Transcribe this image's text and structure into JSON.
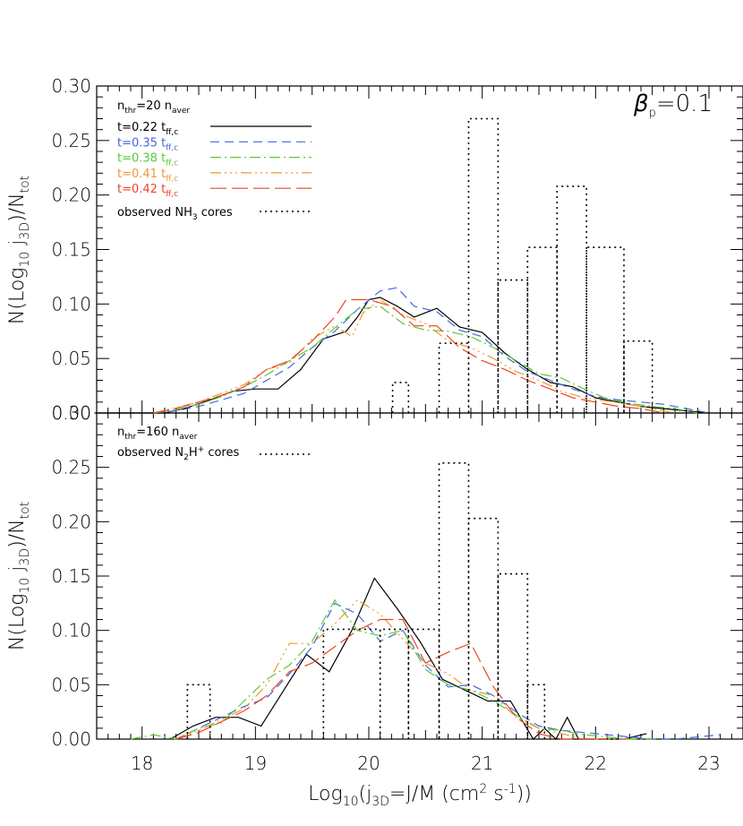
{
  "chart_data": [
    {
      "type": "line",
      "panel": "top",
      "xlim": [
        17.6,
        23.3
      ],
      "ylim": [
        0.0,
        0.3
      ],
      "yticks": [
        "0.00",
        "0.05",
        "0.10",
        "0.15",
        "0.20",
        "0.25",
        "0.30"
      ],
      "ylabel": "N(Log10 j3D)/Ntot",
      "annotation": "βp=0.1",
      "header": "nthr=20 naver",
      "series": [
        {
          "name": "t=0.22 tff,c",
          "color": "#000000",
          "dash": "",
          "x": [
            17.58,
            17.72,
            17.95,
            18.2,
            18.4,
            18.6,
            18.8,
            19.0,
            19.2,
            19.4,
            19.6,
            19.8,
            19.9,
            20.0,
            20.1,
            20.25,
            20.4,
            20.6,
            20.8,
            21.0,
            21.2,
            21.4,
            21.6,
            21.8,
            22.0,
            22.2,
            22.4,
            22.6,
            22.8,
            23.0
          ],
          "y": [
            0.0,
            0.0,
            0.0,
            0.0,
            0.005,
            0.012,
            0.02,
            0.022,
            0.022,
            0.04,
            0.068,
            0.075,
            0.088,
            0.104,
            0.106,
            0.098,
            0.088,
            0.096,
            0.079,
            0.074,
            0.055,
            0.04,
            0.028,
            0.024,
            0.014,
            0.01,
            0.006,
            0.004,
            0.002,
            0.0
          ]
        },
        {
          "name": "t=0.35 tff,c",
          "color": "#4466dd",
          "dash": "10,6",
          "x": [
            18.1,
            18.3,
            18.5,
            18.7,
            18.9,
            19.1,
            19.3,
            19.5,
            19.7,
            19.9,
            20.1,
            20.25,
            20.4,
            20.6,
            20.8,
            21.0,
            21.2,
            21.4,
            21.6,
            21.8,
            22.0,
            22.2,
            22.4,
            22.6,
            22.8,
            23.0
          ],
          "y": [
            0.0,
            0.002,
            0.006,
            0.012,
            0.018,
            0.03,
            0.042,
            0.06,
            0.075,
            0.095,
            0.112,
            0.115,
            0.098,
            0.093,
            0.076,
            0.07,
            0.052,
            0.038,
            0.03,
            0.022,
            0.015,
            0.012,
            0.01,
            0.008,
            0.004,
            0.0
          ]
        },
        {
          "name": "t=0.38 tff,c",
          "color": "#55cc33",
          "dash": "12,4,2,4",
          "x": [
            18.1,
            18.3,
            18.5,
            18.7,
            18.9,
            19.1,
            19.3,
            19.5,
            19.7,
            19.9,
            20.1,
            20.3,
            20.5,
            20.7,
            20.9,
            21.1,
            21.3,
            21.5,
            21.7,
            21.9,
            22.1,
            22.3,
            22.5,
            22.7,
            22.9
          ],
          "y": [
            0.0,
            0.003,
            0.008,
            0.015,
            0.024,
            0.035,
            0.048,
            0.06,
            0.078,
            0.095,
            0.098,
            0.082,
            0.076,
            0.075,
            0.07,
            0.06,
            0.048,
            0.036,
            0.032,
            0.022,
            0.013,
            0.009,
            0.006,
            0.004,
            0.0
          ]
        },
        {
          "name": "t=0.41 tff,c",
          "color": "#ee9933",
          "dash": "12,4,2,4,2,4,2,4",
          "x": [
            18.1,
            18.3,
            18.5,
            18.7,
            18.9,
            19.1,
            19.3,
            19.5,
            19.7,
            19.85,
            19.95,
            20.1,
            20.3,
            20.5,
            20.7,
            20.9,
            21.1,
            21.3,
            21.5,
            21.7,
            21.9,
            22.1,
            22.3,
            22.5,
            22.7
          ],
          "y": [
            0.0,
            0.005,
            0.01,
            0.018,
            0.026,
            0.04,
            0.046,
            0.068,
            0.08,
            0.07,
            0.092,
            0.104,
            0.09,
            0.082,
            0.066,
            0.06,
            0.05,
            0.038,
            0.03,
            0.02,
            0.014,
            0.011,
            0.008,
            0.004,
            0.0
          ]
        },
        {
          "name": "t=0.42 tff,c",
          "color": "#ee4422",
          "dash": "18,6",
          "x": [
            18.1,
            18.3,
            18.5,
            18.7,
            18.9,
            19.1,
            19.3,
            19.5,
            19.7,
            19.8,
            20.0,
            20.2,
            20.4,
            20.6,
            20.8,
            21.0,
            21.2,
            21.4,
            21.6,
            21.8,
            22.0,
            22.2,
            22.4,
            22.6
          ],
          "y": [
            0.0,
            0.004,
            0.01,
            0.016,
            0.024,
            0.04,
            0.048,
            0.066,
            0.088,
            0.104,
            0.104,
            0.098,
            0.08,
            0.08,
            0.06,
            0.048,
            0.04,
            0.03,
            0.022,
            0.014,
            0.01,
            0.006,
            0.004,
            0.0
          ]
        },
        {
          "name": "observed NH3 cores",
          "color": "#000000",
          "dash": "2,4",
          "step": true,
          "bins": [
            {
              "x0": 20.21,
              "x1": 20.35,
              "y": 0.028
            },
            {
              "x0": 20.62,
              "x1": 20.88,
              "y": 0.064
            },
            {
              "x0": 20.88,
              "x1": 21.14,
              "y": 0.27
            },
            {
              "x0": 21.14,
              "x1": 21.4,
              "y": 0.122
            },
            {
              "x0": 21.4,
              "x1": 21.66,
              "y": 0.152
            },
            {
              "x0": 21.66,
              "x1": 21.92,
              "y": 0.208
            },
            {
              "x0": 21.92,
              "x1": 22.25,
              "y": 0.152
            },
            {
              "x0": 22.25,
              "x1": 22.5,
              "y": 0.066
            }
          ]
        }
      ]
    },
    {
      "type": "line",
      "panel": "bottom",
      "xlim": [
        17.6,
        23.3
      ],
      "ylim": [
        0.0,
        0.3
      ],
      "xticks": [
        "18",
        "19",
        "20",
        "21",
        "22",
        "23"
      ],
      "yticks": [
        "0.00",
        "0.05",
        "0.10",
        "0.15",
        "0.20",
        "0.25",
        "0.30"
      ],
      "xlabel": "Log10(j3D=J/M (cm2 s-1))",
      "ylabel": "N(Log10 j3D)/Ntot",
      "header": "nthr=160 naver",
      "series": [
        {
          "name": "t=0.22",
          "color": "#000000",
          "dash": "",
          "x": [
            18.25,
            18.45,
            18.65,
            18.85,
            19.05,
            19.25,
            19.45,
            19.65,
            19.85,
            20.05,
            20.25,
            20.45,
            20.65,
            20.85,
            21.05,
            21.25,
            21.45,
            21.55,
            21.65,
            21.75,
            21.85,
            22.05,
            22.25,
            22.45
          ],
          "y": [
            0.0,
            0.012,
            0.02,
            0.02,
            0.012,
            0.045,
            0.078,
            0.062,
            0.1,
            0.148,
            0.12,
            0.09,
            0.055,
            0.045,
            0.035,
            0.035,
            0.0,
            0.01,
            0.0,
            0.02,
            0.0,
            0.0,
            0.0,
            0.005
          ]
        },
        {
          "name": "t=0.35",
          "color": "#4466dd",
          "dash": "10,6",
          "x": [
            18.3,
            18.5,
            18.7,
            18.9,
            19.1,
            19.3,
            19.5,
            19.7,
            19.9,
            20.1,
            20.3,
            20.5,
            20.7,
            20.9,
            21.1,
            21.3,
            21.5,
            21.7,
            21.9,
            22.1,
            22.3,
            22.5,
            22.7,
            22.9,
            23.1
          ],
          "y": [
            0.0,
            0.01,
            0.02,
            0.03,
            0.038,
            0.06,
            0.085,
            0.125,
            0.115,
            0.09,
            0.1,
            0.068,
            0.048,
            0.05,
            0.04,
            0.025,
            0.012,
            0.008,
            0.006,
            0.004,
            0.002,
            0.0,
            0.0,
            0.002,
            0.004
          ]
        },
        {
          "name": "t=0.38",
          "color": "#55cc33",
          "dash": "12,4,2,4",
          "x": [
            17.9,
            18.1,
            18.3,
            18.5,
            18.7,
            18.9,
            19.1,
            19.3,
            19.5,
            19.7,
            19.9,
            20.1,
            20.3,
            20.5,
            20.7,
            20.9,
            21.1,
            21.3,
            21.5,
            21.7,
            21.9,
            22.1,
            22.3,
            22.5
          ],
          "y": [
            0.0,
            0.004,
            0.0,
            0.01,
            0.015,
            0.035,
            0.055,
            0.068,
            0.09,
            0.128,
            0.1,
            0.095,
            0.1,
            0.064,
            0.05,
            0.045,
            0.035,
            0.022,
            0.01,
            0.008,
            0.004,
            0.002,
            0.0,
            0.0
          ]
        },
        {
          "name": "t=0.41",
          "color": "#ee9933",
          "dash": "12,4,2,4,2,4,2,4",
          "x": [
            18.3,
            18.5,
            18.7,
            18.9,
            19.1,
            19.3,
            19.5,
            19.7,
            19.9,
            20.1,
            20.3,
            20.5,
            20.7,
            20.9,
            21.1,
            21.3,
            21.5,
            21.7,
            21.9,
            22.1,
            22.3
          ],
          "y": [
            0.0,
            0.008,
            0.018,
            0.028,
            0.05,
            0.088,
            0.088,
            0.106,
            0.128,
            0.115,
            0.092,
            0.07,
            0.06,
            0.045,
            0.04,
            0.02,
            0.01,
            0.005,
            0.0,
            0.0,
            0.0
          ]
        },
        {
          "name": "t=0.42",
          "color": "#ee4422",
          "dash": "18,6",
          "x": [
            18.3,
            18.5,
            18.7,
            18.9,
            19.1,
            19.3,
            19.5,
            19.7,
            19.9,
            20.1,
            20.3,
            20.5,
            20.7,
            20.9,
            21.1,
            21.3,
            21.5,
            21.7,
            21.9,
            22.1
          ],
          "y": [
            0.0,
            0.006,
            0.016,
            0.026,
            0.04,
            0.062,
            0.07,
            0.085,
            0.1,
            0.11,
            0.11,
            0.07,
            0.08,
            0.088,
            0.048,
            0.02,
            0.005,
            0.0,
            0.0,
            0.0
          ]
        },
        {
          "name": "observed N2H+ cores",
          "color": "#000000",
          "dash": "2,4",
          "step": true,
          "bins": [
            {
              "x0": 18.4,
              "x1": 18.6,
              "y": 0.05
            },
            {
              "x0": 19.6,
              "x1": 20.1,
              "y": 0.101
            },
            {
              "x0": 20.1,
              "x1": 20.35,
              "y": 0.101
            },
            {
              "x0": 20.35,
              "x1": 20.62,
              "y": 0.101
            },
            {
              "x0": 20.62,
              "x1": 20.88,
              "y": 0.254
            },
            {
              "x0": 20.88,
              "x1": 21.14,
              "y": 0.203
            },
            {
              "x0": 21.14,
              "x1": 21.4,
              "y": 0.152
            },
            {
              "x0": 21.4,
              "x1": 21.55,
              "y": 0.05
            }
          ]
        }
      ]
    }
  ],
  "legend": {
    "top_header": {
      "base": "n",
      "sub1": "thr",
      "mid": "=20 n",
      "sub2": "aver"
    },
    "entries": [
      {
        "base": "t=0.22 t",
        "sub": "ff,c",
        "color": "#000000",
        "dash": ""
      },
      {
        "base": "t=0.35 t",
        "sub": "ff,c",
        "color": "#4466dd",
        "dash": "10,6"
      },
      {
        "base": "t=0.38 t",
        "sub": "ff,c",
        "color": "#55cc33",
        "dash": "12,4,2,4"
      },
      {
        "base": "t=0.41 t",
        "sub": "ff,c",
        "color": "#ee9933",
        "dash": "12,4,2,4,2,4,2,4"
      },
      {
        "base": "t=0.42 t",
        "sub": "ff,c",
        "color": "#ee4422",
        "dash": "18,6"
      }
    ],
    "observed_top": {
      "pre": "observed NH",
      "sub": "3",
      "post": " cores"
    },
    "bottom_header": {
      "base": "n",
      "sub1": "thr",
      "mid": "=160 n",
      "sub2": "aver"
    },
    "observed_bottom": {
      "pre": "observed N",
      "sub": "2",
      "mid": "H",
      "sup": "+",
      "post": " cores"
    },
    "beta": {
      "symbol": "β",
      "sub": "p",
      "value": "=0.1"
    }
  },
  "axis_labels": {
    "y_top": {
      "pre": "N(Log",
      "sub": "10",
      "mid": " j",
      "sub2": "3D",
      "post": ")/N",
      "sub3": "tot"
    },
    "y_bottom": {
      "pre": "N(Log",
      "sub": "10",
      "mid": " j",
      "sub2": "3D",
      "post": ")/N",
      "sub3": "tot"
    },
    "x": {
      "pre": "Log",
      "sub": "10",
      "mid": "(j",
      "sub2": "3D",
      "mid2": "=J/M (cm",
      "sup": "2",
      "mid3": " s",
      "sup2": "-1",
      "post": "))"
    }
  }
}
